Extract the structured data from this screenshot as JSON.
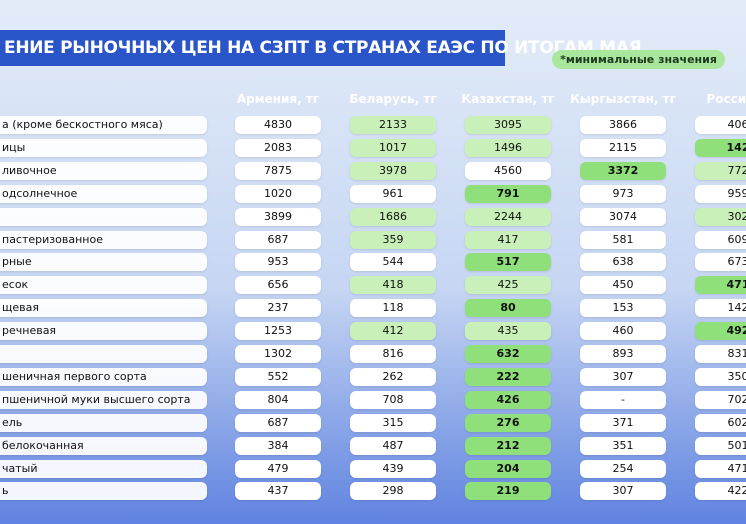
{
  "header": {
    "title": "ЕНИЕ РЫНОЧНЫХ ЦЕН НА СЗПТ В СТРАНАХ ЕАЭС ПО ИТОГАМ МАЯ",
    "note": "*минимальные значения"
  },
  "table": {
    "columns": [
      "Армения, тг",
      "Беларусь, тг",
      "Казахстан, тг",
      "Кыргызстан, тг",
      "Россия, т"
    ],
    "rows": [
      [
        "а (кроме бескостного мяса)",
        4830,
        2133,
        3095,
        3866,
        406
      ],
      [
        "ицы",
        2083,
        1017,
        1496,
        2115,
        142
      ],
      [
        "ливочное",
        7875,
        3978,
        4560,
        3372,
        772
      ],
      [
        "одсолнечное",
        1020,
        961,
        791,
        973,
        959
      ],
      [
        null,
        3899,
        1686,
        2244,
        3074,
        302
      ],
      [
        "пастеризованное",
        687,
        359,
        417,
        581,
        609
      ],
      [
        "рные",
        953,
        544,
        517,
        638,
        673
      ],
      [
        "есок",
        656,
        418,
        425,
        450,
        471
      ],
      [
        "щевая",
        237,
        118,
        80,
        153,
        142
      ],
      [
        "речневая",
        1253,
        412,
        435,
        460,
        492
      ],
      [
        null,
        1302,
        816,
        632,
        893,
        831
      ],
      [
        "шеничная первого сорта",
        552,
        262,
        222,
        307,
        350
      ],
      [
        "пшеничной муки высшего сорта",
        804,
        708,
        426,
        "-",
        702
      ],
      [
        "ель",
        687,
        315,
        276,
        371,
        602
      ],
      [
        "белокочанная",
        384,
        487,
        212,
        351,
        501
      ],
      [
        "чатый",
        479,
        439,
        204,
        254,
        471
      ],
      [
        "ь",
        437,
        298,
        219,
        307,
        422
      ]
    ]
  }
}
